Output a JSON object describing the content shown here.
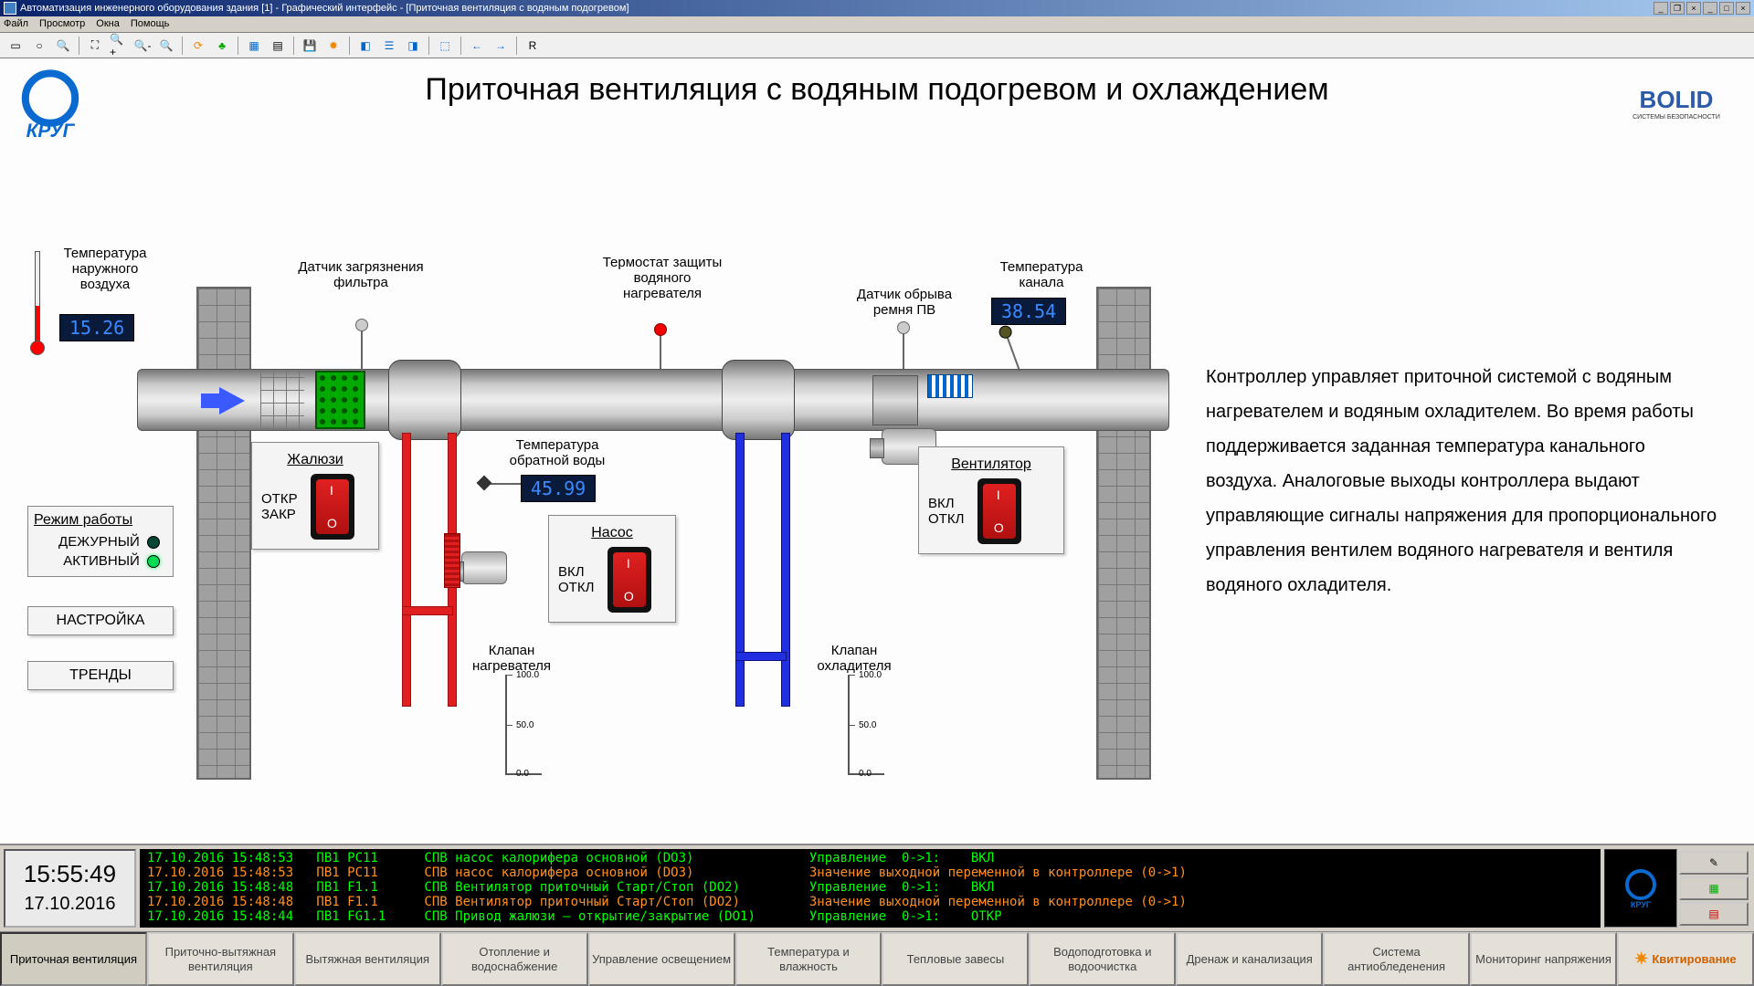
{
  "titlebar": "Автоматизация инженерного оборудования здания [1] - Графический интерфейс - [Приточная вентиляция с водяным подогревом]",
  "menu": {
    "file": "Файл",
    "view": "Просмотр",
    "windows": "Окна",
    "help": "Помощь"
  },
  "toolbar_R": "R",
  "page_title": "Приточная вентиляция с водяным подогревом и охлаждением",
  "logo_left": "КРУГ",
  "logo_right": "BOLID",
  "logo_right_sub": "СИСТЕМЫ БЕЗОПАСНОСТИ",
  "labels": {
    "t_out": "Температура наружного воздуха",
    "filter": "Датчик загрязнения фильтра",
    "thermo": "Термостат защиты водяного нагревателя",
    "belt": "Датчик обрыва ремня ПВ",
    "t_chan": "Температура канала",
    "t_ret": "Температура обратной воды",
    "valve_h": "Клапан нагревателя",
    "valve_c": "Клапан охладителя"
  },
  "values": {
    "t_out": "15.26",
    "t_chan": "38.54",
    "t_ret": "45.99"
  },
  "panels": {
    "zhal": {
      "title": "Жалюзи",
      "open": "ОТКР",
      "close": "ЗАКР"
    },
    "nasos": {
      "title": "Насос",
      "on": "ВКЛ",
      "off": "ОТКЛ"
    },
    "vent": {
      "title": "Вентилятор",
      "on": "ВКЛ",
      "off": "ОТКЛ"
    }
  },
  "mode": {
    "title": "Режим работы",
    "duty": "ДЕЖУРНЫЙ",
    "active": "АКТИВНЫЙ"
  },
  "btn_settings": "НАСТРОЙКА",
  "btn_trends": "ТРЕНДЫ",
  "scale": {
    "top": "100.0",
    "mid": "50.0",
    "bot": "0.0"
  },
  "desc": "Контроллер управляет приточной системой с водяным нагревателем и водяным охладителем. Во время работы поддерживается заданная температура канального воздуха. Аналоговые выходы контроллера выдают управляющие сигналы напряжения для пропорционального управления вентилем водяного нагревателя и вентиля водяного охладителя.",
  "clock": {
    "time": "15:55:49",
    "date": "17.10.2016"
  },
  "log_lines": [
    {
      "cls": "r-g",
      "text": "17.10.2016 15:48:53   ПВ1 PC11      СПВ насос калорифера основной (DO3)               Управление  0->1:    ВКЛ"
    },
    {
      "cls": "r-o",
      "text": "17.10.2016 15:48:53   ПВ1 PC11      СПВ насос калорифера основной (DO3)               Значение выходной переменной в контроллере (0->1)"
    },
    {
      "cls": "r-g",
      "text": "17.10.2016 15:48:48   ПВ1 F1.1      СПВ Вентилятор приточный Старт/Стоп (DO2)         Управление  0->1:    ВКЛ"
    },
    {
      "cls": "r-o",
      "text": "17.10.2016 15:48:48   ПВ1 F1.1      СПВ Вентилятор приточный Старт/Стоп (DO2)         Значение выходной переменной в контроллере (0->1)"
    },
    {
      "cls": "r-g",
      "text": "17.10.2016 15:48:44   ПВ1 FG1.1     СПВ Привод жалюзи – открытие/закрытие (DO1)       Управление  0->1:    ОТКР"
    }
  ],
  "nav": {
    "n1": "Приточная вентиляция",
    "n2": "Приточно-вытяжная вентиляция",
    "n3": "Вытяжная вентиляция",
    "n4": "Отопление и водоснабжение",
    "n5": "Управление освещением",
    "n6": "Температура и влажность",
    "n7": "Тепловые завесы",
    "n8": "Водоподготовка и водоочистка",
    "n9": "Дренаж и канализация",
    "n10": "Система антиобледенения",
    "n11": "Мониторинг напряжения",
    "n12": "Квитирование"
  },
  "colors": {
    "hot": "#e02020",
    "cold": "#2030e0",
    "display_bg": "#0a1a3a",
    "display_fg": "#3a8aff",
    "green_filter": "#00aa00",
    "brick": "#a0a0a0"
  }
}
